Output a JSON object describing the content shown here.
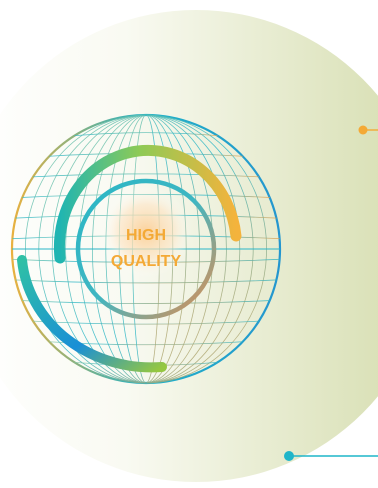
{
  "badge": {
    "line1": "HIGH",
    "line2": "QUALITY"
  },
  "colors": {
    "orange": "#f4a935",
    "teal": "#1fb5c9",
    "blue": "#1a8fd6",
    "green": "#8fc43d",
    "panel_light": "#f7f8ee",
    "panel_dark": "#d6deb0"
  },
  "icons": {
    "globe": "wireframe-globe-icon",
    "connector_top": "orange-dot-connector",
    "connector_bottom": "blue-dot-connector"
  }
}
